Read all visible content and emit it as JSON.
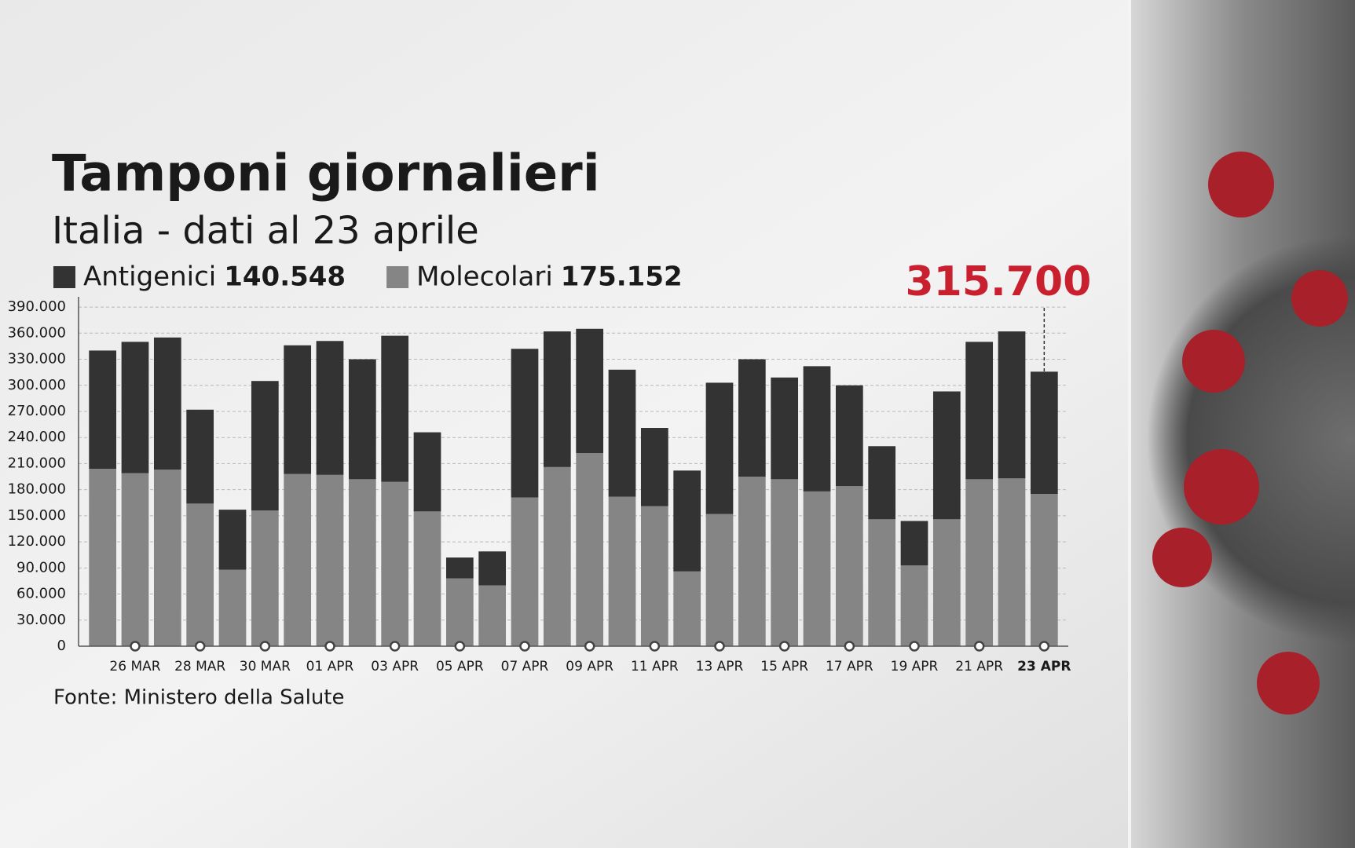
{
  "chart_data": {
    "type": "stacked-bar",
    "title": "Tamponi giornalieri",
    "subtitle": "Italia - dati al 23 aprile",
    "source": "Fonte: Ministero della Salute",
    "annotation": "315.700",
    "categories": [
      null,
      "26 MAR",
      null,
      "28 MAR",
      null,
      "30 MAR",
      null,
      "01 APR",
      null,
      "03 APR",
      null,
      "05 APR",
      null,
      "07 APR",
      null,
      "09 APR",
      null,
      "11 APR",
      null,
      "13 APR",
      null,
      "15 APR",
      null,
      "17 APR",
      null,
      "19 APR",
      null,
      "21 APR",
      null,
      "23 APR"
    ],
    "series": [
      {
        "name": "Molecolari",
        "color": "#858585",
        "values": [
          204000,
          199000,
          203000,
          164000,
          88000,
          156000,
          198000,
          197000,
          192000,
          189000,
          155000,
          78000,
          70000,
          171000,
          206000,
          222000,
          172000,
          161000,
          86000,
          152000,
          195000,
          192000,
          178000,
          184000,
          146000,
          93000,
          146000,
          192000,
          193000,
          175152
        ],
        "value_labels": [
          null,
          null,
          null,
          null,
          null,
          null,
          null,
          null,
          null,
          null,
          null,
          null,
          null,
          null,
          null,
          null,
          null,
          null,
          null,
          null,
          null,
          null,
          null,
          null,
          null,
          null,
          null,
          null,
          null,
          "175.152"
        ]
      },
      {
        "name": "Antigenici",
        "color": "#333333",
        "values": [
          136000,
          151000,
          152000,
          108000,
          69000,
          149000,
          148000,
          154000,
          138000,
          168000,
          91000,
          24000,
          39000,
          171000,
          156000,
          143000,
          146000,
          90000,
          116000,
          151000,
          135000,
          117000,
          144000,
          116000,
          84000,
          51000,
          147000,
          158000,
          169000,
          140548
        ],
        "value_labels": [
          null,
          null,
          null,
          null,
          null,
          null,
          null,
          null,
          null,
          null,
          null,
          null,
          null,
          null,
          null,
          null,
          null,
          null,
          null,
          null,
          null,
          null,
          null,
          null,
          null,
          null,
          null,
          null,
          null,
          "140.548"
        ]
      }
    ],
    "ylim": [
      0,
      400000
    ],
    "yticks": [
      0,
      {
        "value": 30000,
        "label": "30.000"
      },
      {
        "value": 60000,
        "label": "60.000"
      },
      {
        "value": 90000,
        "label": "90.000"
      },
      {
        "value": 120000,
        "label": "120.000"
      },
      {
        "value": 150000,
        "label": "150.000"
      },
      {
        "value": 180000,
        "label": "180.000"
      },
      {
        "value": 210000,
        "label": "210.000"
      },
      {
        "value": 240000,
        "label": "240.000"
      },
      {
        "value": 270000,
        "label": "270.000"
      },
      {
        "value": 300000,
        "label": "300.000"
      },
      {
        "value": 330000,
        "label": "330.000"
      },
      {
        "value": 360000,
        "label": "360.000"
      },
      {
        "value": 390000,
        "label": "390.000"
      }
    ],
    "grid": true
  }
}
